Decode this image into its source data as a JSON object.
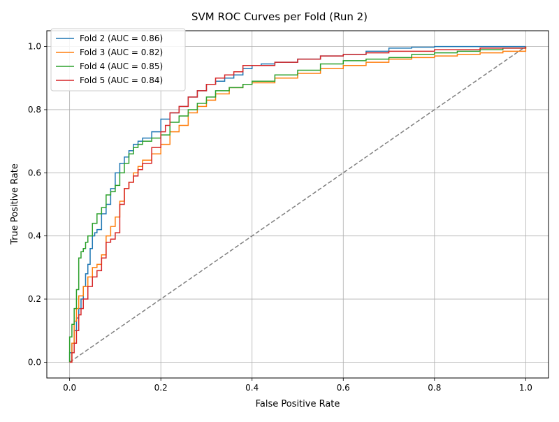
{
  "chart_data": {
    "type": "line",
    "title": "SVM ROC Curves per Fold (Run 2)",
    "xlabel": "False Positive Rate",
    "ylabel": "True Positive Rate",
    "xlim": [
      -0.05,
      1.05
    ],
    "ylim": [
      -0.05,
      1.05
    ],
    "xticks": [
      0.0,
      0.2,
      0.4,
      0.6,
      0.8,
      1.0
    ],
    "xtick_labels": [
      "0.0",
      "0.2",
      "0.4",
      "0.6",
      "0.8",
      "1.0"
    ],
    "yticks": [
      0.0,
      0.2,
      0.4,
      0.6,
      0.8,
      1.0
    ],
    "ytick_labels": [
      "0.0",
      "0.2",
      "0.4",
      "0.6",
      "0.8",
      "1.0"
    ],
    "grid": true,
    "legend_position": "top-left",
    "diagonal": {
      "x": [
        0,
        1
      ],
      "y": [
        0,
        1
      ],
      "color": "#808080",
      "style": "dashed"
    },
    "series": [
      {
        "name": "Fold 2 (AUC = 0.86)",
        "color": "#1f77b4",
        "x": [
          0.0,
          0.0,
          0.005,
          0.01,
          0.015,
          0.02,
          0.025,
          0.03,
          0.035,
          0.04,
          0.045,
          0.05,
          0.055,
          0.06,
          0.07,
          0.08,
          0.09,
          0.1,
          0.11,
          0.12,
          0.13,
          0.14,
          0.15,
          0.16,
          0.18,
          0.2,
          0.22,
          0.24,
          0.26,
          0.28,
          0.3,
          0.32,
          0.34,
          0.36,
          0.38,
          0.4,
          0.42,
          0.45,
          0.5,
          0.55,
          0.6,
          0.65,
          0.7,
          0.75,
          0.8,
          0.9,
          1.0
        ],
        "y": [
          0.0,
          0.03,
          0.06,
          0.1,
          0.14,
          0.17,
          0.2,
          0.24,
          0.28,
          0.31,
          0.36,
          0.4,
          0.41,
          0.42,
          0.47,
          0.5,
          0.55,
          0.6,
          0.63,
          0.65,
          0.67,
          0.69,
          0.7,
          0.71,
          0.73,
          0.77,
          0.79,
          0.81,
          0.84,
          0.86,
          0.88,
          0.89,
          0.9,
          0.91,
          0.93,
          0.94,
          0.945,
          0.95,
          0.96,
          0.97,
          0.975,
          0.985,
          0.995,
          0.998,
          1.0,
          1.0,
          1.0
        ]
      },
      {
        "name": "Fold 3 (AUC = 0.82)",
        "color": "#ff7f0e",
        "x": [
          0.0,
          0.005,
          0.01,
          0.015,
          0.02,
          0.03,
          0.04,
          0.05,
          0.06,
          0.07,
          0.08,
          0.09,
          0.1,
          0.11,
          0.12,
          0.13,
          0.14,
          0.15,
          0.16,
          0.18,
          0.2,
          0.22,
          0.24,
          0.26,
          0.28,
          0.3,
          0.32,
          0.35,
          0.38,
          0.4,
          0.45,
          0.5,
          0.55,
          0.6,
          0.65,
          0.7,
          0.75,
          0.8,
          0.85,
          0.9,
          0.95,
          1.0
        ],
        "y": [
          0.0,
          0.06,
          0.13,
          0.17,
          0.21,
          0.24,
          0.27,
          0.3,
          0.31,
          0.34,
          0.4,
          0.43,
          0.46,
          0.51,
          0.55,
          0.57,
          0.6,
          0.62,
          0.64,
          0.66,
          0.69,
          0.73,
          0.75,
          0.79,
          0.81,
          0.83,
          0.85,
          0.87,
          0.88,
          0.885,
          0.9,
          0.915,
          0.93,
          0.94,
          0.95,
          0.96,
          0.965,
          0.97,
          0.975,
          0.98,
          0.985,
          1.0
        ]
      },
      {
        "name": "Fold 4 (AUC = 0.85)",
        "color": "#2ca02c",
        "x": [
          0.0,
          0.0,
          0.005,
          0.01,
          0.015,
          0.02,
          0.025,
          0.03,
          0.035,
          0.04,
          0.05,
          0.06,
          0.07,
          0.08,
          0.09,
          0.1,
          0.11,
          0.12,
          0.13,
          0.14,
          0.15,
          0.16,
          0.18,
          0.2,
          0.22,
          0.24,
          0.26,
          0.28,
          0.3,
          0.32,
          0.35,
          0.38,
          0.4,
          0.45,
          0.5,
          0.55,
          0.6,
          0.65,
          0.7,
          0.75,
          0.8,
          0.85,
          0.9,
          0.95,
          1.0
        ],
        "y": [
          0.0,
          0.08,
          0.12,
          0.17,
          0.23,
          0.33,
          0.35,
          0.36,
          0.38,
          0.4,
          0.44,
          0.47,
          0.49,
          0.53,
          0.54,
          0.56,
          0.6,
          0.63,
          0.66,
          0.68,
          0.69,
          0.7,
          0.71,
          0.72,
          0.76,
          0.78,
          0.8,
          0.82,
          0.84,
          0.86,
          0.87,
          0.88,
          0.89,
          0.91,
          0.925,
          0.945,
          0.955,
          0.96,
          0.965,
          0.975,
          0.98,
          0.985,
          0.99,
          0.995,
          1.0
        ]
      },
      {
        "name": "Fold 5 (AUC = 0.84)",
        "color": "#d62728",
        "x": [
          0.0,
          0.005,
          0.01,
          0.015,
          0.02,
          0.025,
          0.03,
          0.04,
          0.05,
          0.06,
          0.07,
          0.08,
          0.09,
          0.1,
          0.11,
          0.12,
          0.13,
          0.14,
          0.15,
          0.16,
          0.18,
          0.2,
          0.21,
          0.22,
          0.24,
          0.26,
          0.28,
          0.3,
          0.32,
          0.34,
          0.36,
          0.38,
          0.4,
          0.45,
          0.5,
          0.55,
          0.6,
          0.65,
          0.7,
          0.8,
          0.9,
          1.0
        ],
        "y": [
          0.0,
          0.03,
          0.06,
          0.1,
          0.15,
          0.17,
          0.2,
          0.24,
          0.27,
          0.29,
          0.33,
          0.38,
          0.39,
          0.41,
          0.5,
          0.55,
          0.57,
          0.59,
          0.61,
          0.63,
          0.68,
          0.73,
          0.75,
          0.79,
          0.81,
          0.84,
          0.86,
          0.88,
          0.9,
          0.91,
          0.92,
          0.94,
          0.94,
          0.95,
          0.96,
          0.97,
          0.975,
          0.98,
          0.985,
          0.99,
          0.995,
          1.0
        ]
      }
    ]
  }
}
